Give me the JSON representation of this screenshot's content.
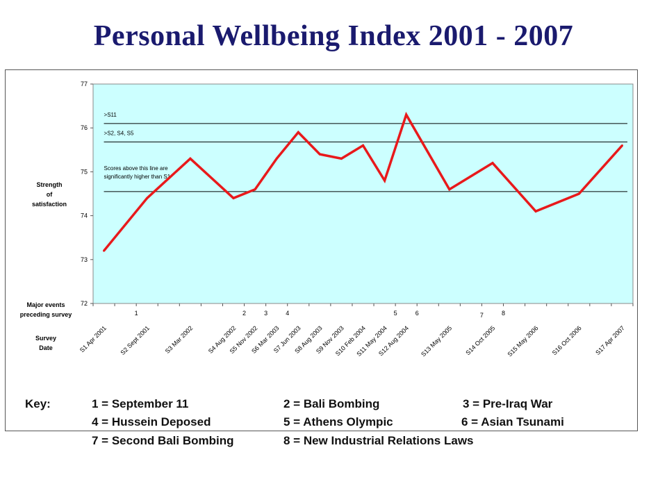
{
  "slide_title": "Personal Wellbeing Index 2001 - 2007",
  "side_labels": {
    "ylabel_line1": "Strength",
    "ylabel_line2": "of",
    "ylabel_line3": "satisfaction",
    "events_line1": "Major events",
    "events_line2": "preceding survey",
    "survey_line1": "Survey",
    "survey_line2": "Date"
  },
  "key": {
    "prefix": "Key:",
    "items": [
      "1 = September 11",
      "2 = Bali Bombing",
      "3 = Pre-Iraq War",
      "4 = Hussein Deposed",
      "5 = Athens Olympic",
      "6 = Asian Tsunami",
      "7 = Second Bali Bombing",
      "8 = New Industrial Relations Laws"
    ]
  },
  "colors": {
    "title": "#1a1a6e",
    "plot_background": "#ccffff",
    "series_line": "#e8191b",
    "reference_lines": "#000000"
  },
  "chart_data": {
    "type": "line",
    "title": "Personal Wellbeing Index 2001 - 2007",
    "ylabel": "Strength of satisfaction",
    "xlabel": "Survey Date",
    "ylim": [
      72,
      77
    ],
    "yticks": [
      72,
      73,
      74,
      75,
      76,
      77
    ],
    "grid": false,
    "legend": "none",
    "x_slots": 25,
    "categories": [
      {
        "label": "S1 Apr 2001",
        "slot": 0
      },
      {
        "label": "S2 Sept 2001",
        "slot": 2
      },
      {
        "label": "S3 Mar 2002",
        "slot": 4
      },
      {
        "label": "S4 Aug 2002",
        "slot": 6
      },
      {
        "label": "S5 Nov 2002",
        "slot": 7
      },
      {
        "label": "S6 Mar 2003",
        "slot": 8
      },
      {
        "label": "S7 Jun 2003",
        "slot": 9
      },
      {
        "label": "S8 Aug 2003",
        "slot": 10
      },
      {
        "label": "S9 Nov 2003",
        "slot": 11
      },
      {
        "label": "S10 Feb 2004",
        "slot": 12
      },
      {
        "label": "S11 May 2004",
        "slot": 13
      },
      {
        "label": "S12 Aug 2004",
        "slot": 14
      },
      {
        "label": "S13 May 2005",
        "slot": 16
      },
      {
        "label": "S14 Oct 2005",
        "slot": 18
      },
      {
        "label": "S15 May 2006",
        "slot": 20
      },
      {
        "label": "S16 Oct 2006",
        "slot": 22
      },
      {
        "label": "S17 Apr 2007",
        "slot": 24
      }
    ],
    "series": [
      {
        "values": [
          73.2,
          74.4,
          75.3,
          74.4,
          74.6,
          75.3,
          75.9,
          75.4,
          75.3,
          75.6,
          74.8,
          76.3,
          74.6,
          75.2,
          74.1,
          74.5,
          75.6
        ]
      }
    ],
    "reference_lines": [
      {
        "y": 76.1,
        "label": ">S11"
      },
      {
        "y": 75.68,
        "label": ">S2, S4, S5"
      },
      {
        "y": 74.55,
        "label_line1": "Scores above this line are",
        "label_line2": "significantly higher than S1"
      }
    ],
    "event_markers": [
      {
        "label": "1",
        "slot": 1.5
      },
      {
        "label": "2",
        "slot": 6.5
      },
      {
        "label": "3",
        "slot": 7.5
      },
      {
        "label": "4",
        "slot": 8.5
      },
      {
        "label": "5",
        "slot": 13.5
      },
      {
        "label": "6",
        "slot": 14.5
      },
      {
        "label": "7",
        "slot": 17.5
      },
      {
        "label": "8",
        "slot": 18.5
      }
    ]
  }
}
